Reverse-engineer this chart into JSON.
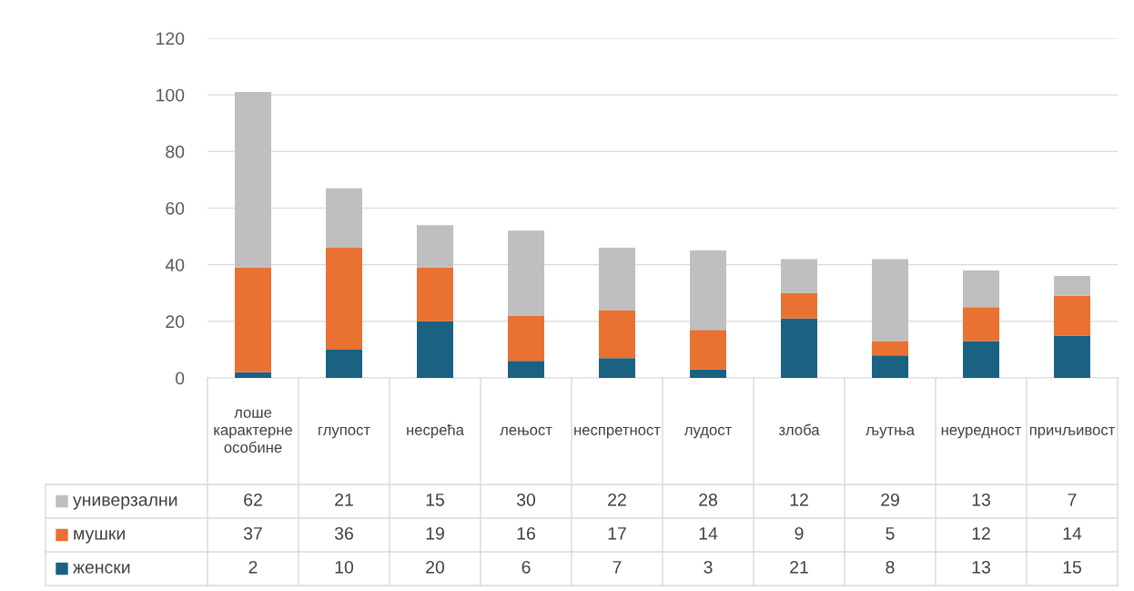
{
  "chart_data": {
    "type": "bar",
    "stacked": true,
    "categories": [
      "лоше карактерне особине",
      "глупост",
      "несрећа",
      "лењост",
      "неспретност",
      "лудост",
      "злоба",
      "љутња",
      "неуредност",
      "причљивост"
    ],
    "series": [
      {
        "name": "женски",
        "color": "#1a6282",
        "values": [
          2,
          10,
          20,
          6,
          7,
          3,
          21,
          8,
          13,
          15
        ]
      },
      {
        "name": "мушки",
        "color": "#e97132",
        "values": [
          37,
          36,
          19,
          16,
          17,
          14,
          9,
          5,
          12,
          14
        ]
      },
      {
        "name": "универзални",
        "color": "#bfbfbf",
        "values": [
          62,
          21,
          15,
          30,
          22,
          28,
          12,
          29,
          13,
          7
        ]
      }
    ],
    "ylim": [
      0,
      120
    ],
    "yticks": [
      0,
      20,
      40,
      60,
      80,
      100,
      120
    ],
    "grid": "y",
    "data_labels": true,
    "legend": "bottom"
  }
}
